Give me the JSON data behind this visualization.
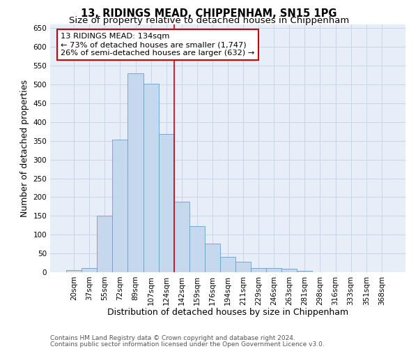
{
  "title": "13, RIDINGS MEAD, CHIPPENHAM, SN15 1PG",
  "subtitle": "Size of property relative to detached houses in Chippenham",
  "xlabel": "Distribution of detached houses by size in Chippenham",
  "ylabel": "Number of detached properties",
  "categories": [
    "20sqm",
    "37sqm",
    "55sqm",
    "72sqm",
    "89sqm",
    "107sqm",
    "124sqm",
    "142sqm",
    "159sqm",
    "176sqm",
    "194sqm",
    "211sqm",
    "229sqm",
    "246sqm",
    "263sqm",
    "281sqm",
    "298sqm",
    "316sqm",
    "333sqm",
    "351sqm",
    "368sqm"
  ],
  "values": [
    5,
    12,
    150,
    353,
    530,
    502,
    368,
    188,
    122,
    76,
    40,
    27,
    12,
    12,
    10,
    3,
    0,
    0,
    0,
    0,
    0
  ],
  "bar_color": "#c5d8ee",
  "bar_edge_color": "#6b9ec8",
  "vline_label": "13 RIDINGS MEAD: 134sqm",
  "arrow_left_text": "← 73% of detached houses are smaller (1,747)",
  "arrow_right_text": "26% of semi-detached houses are larger (632) →",
  "annotation_box_color": "#ffffff",
  "annotation_box_edge_color": "#cc0000",
  "vline_color": "#cc0000",
  "vline_position": 6.5,
  "ylim": [
    0,
    660
  ],
  "yticks": [
    0,
    50,
    100,
    150,
    200,
    250,
    300,
    350,
    400,
    450,
    500,
    550,
    600,
    650
  ],
  "grid_color": "#c8d4e8",
  "background_color": "#e8eef8",
  "footer_line1": "Contains HM Land Registry data © Crown copyright and database right 2024.",
  "footer_line2": "Contains public sector information licensed under the Open Government Licence v3.0.",
  "title_fontsize": 10.5,
  "subtitle_fontsize": 9.5,
  "axis_label_fontsize": 9,
  "tick_fontsize": 7.5,
  "footer_fontsize": 6.5
}
